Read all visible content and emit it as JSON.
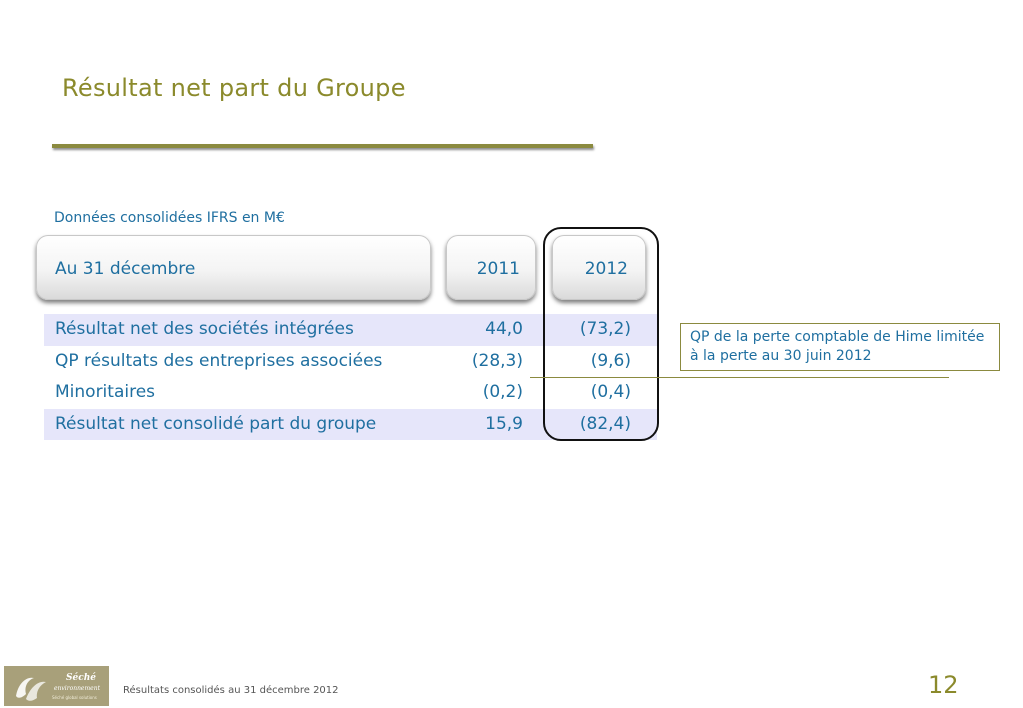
{
  "slide": {
    "title": "Résultat net part du Groupe",
    "subtitle": "Données consolidées IFRS en M€"
  },
  "table": {
    "header": {
      "label": "Au 31 décembre",
      "col_2011": "2011",
      "col_2012": "2012"
    },
    "rows": [
      {
        "label": "Résultat net des sociétés intégrées",
        "v2011": "44,0",
        "v2012": "(73,2)"
      },
      {
        "label": "QP résultats des entreprises associées",
        "v2011": "(28,3)",
        "v2012": "(9,6)"
      },
      {
        "label": "Minoritaires",
        "v2011": "(0,2)",
        "v2012": "(0,4)"
      },
      {
        "label": "Résultat net consolidé part du groupe",
        "v2011": "15,9",
        "v2012": "(82,4)"
      }
    ]
  },
  "note": {
    "text": "QP de la perte comptable de Hime limitée à la perte au 30 juin 2012"
  },
  "footer": {
    "text": "Résultats consolidés au 31 décembre 2012",
    "page_number": "12",
    "logo": {
      "name": "Séché",
      "line2": "environnement",
      "tagline": "Séché global solutions"
    }
  },
  "colors": {
    "accent_olive": "#8b8a2c",
    "text_blue": "#1f6fa0",
    "row_shade": "#e6e6fa"
  }
}
